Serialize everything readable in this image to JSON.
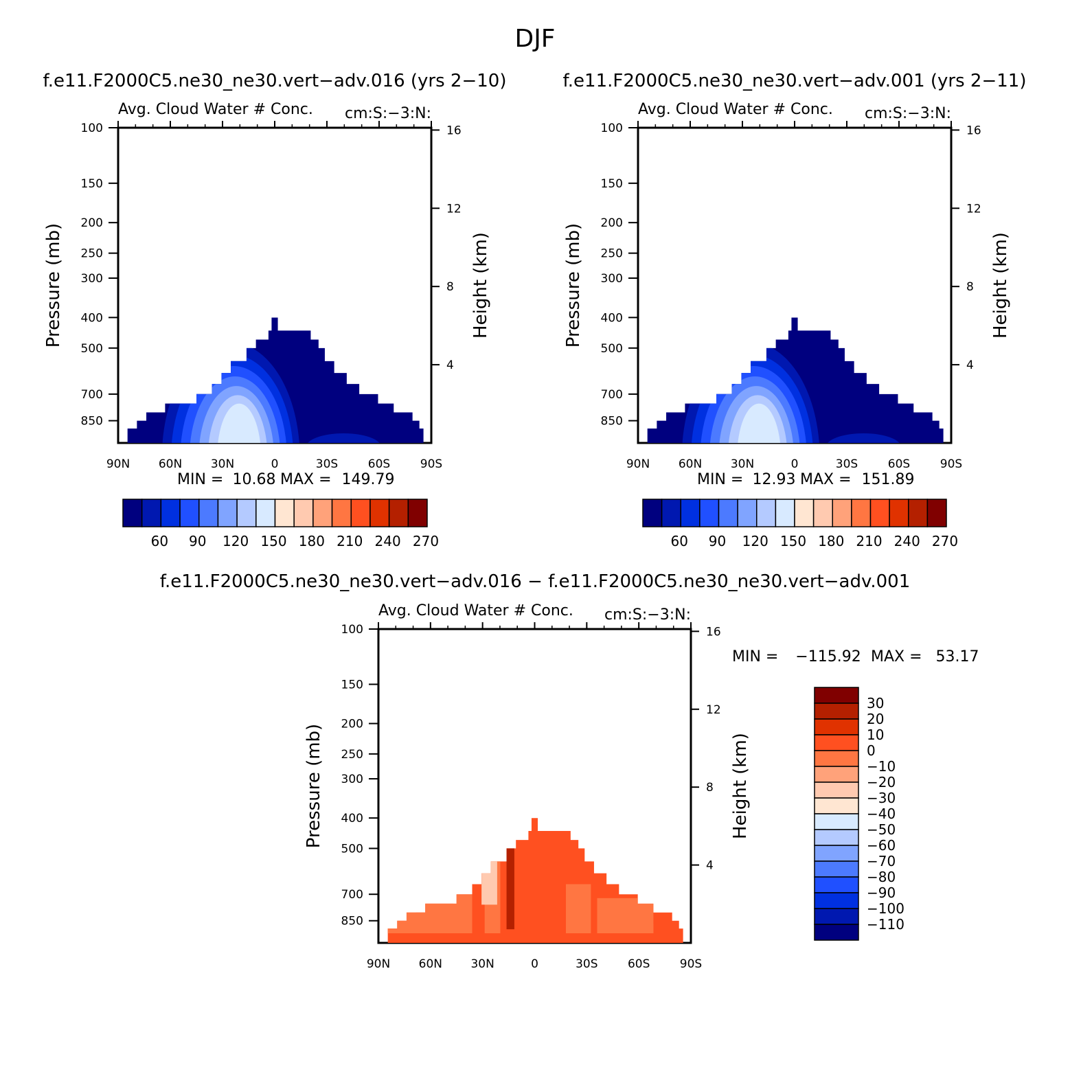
{
  "figure": {
    "season": "DJF",
    "panel_titles": [
      "f.e11.F2000C5.ne30_ne30.vert−adv.016 (yrs 2−10)",
      "f.e11.F2000C5.ne30_ne30.vert−adv.001 (yrs 2−11)",
      "f.e11.F2000C5.ne30_ne30.vert−adv.016 − f.e11.F2000C5.ne30_ne30.vert−adv.001"
    ]
  },
  "chart_data": [
    {
      "type": "heatmap",
      "title": "f.e11.F2000C5.ne30_ne30.vert−adv.016 (yrs 2−10)",
      "subtitle": "Avg. Cloud Water # Conc.",
      "units": "cm:S:−3:N:",
      "xlabel": "",
      "ylabel": "Pressure (mb)",
      "y2label": "Height (km)",
      "x_ticks": [
        "90N",
        "60N",
        "30N",
        "0",
        "30S",
        "60S",
        "90S"
      ],
      "y_ticks": [
        100,
        150,
        200,
        250,
        300,
        400,
        500,
        700,
        850
      ],
      "y2_ticks": [
        16,
        12,
        8,
        4
      ],
      "ylim": [
        100,
        1000
      ],
      "y_scale": "log",
      "stats": {
        "min_label": "MIN =",
        "min": "10.68",
        "max_label": "MAX =",
        "max": "149.79"
      },
      "colorbar": {
        "orientation": "horizontal",
        "labels": [
          "60",
          "90",
          "120",
          "150",
          "180",
          "210",
          "240",
          "270"
        ],
        "colors": [
          "#00007f",
          "#0018b0",
          "#0030e0",
          "#2050ff",
          "#4c7aff",
          "#80a4ff",
          "#b4caff",
          "#d8eaff",
          "#ffe6d2",
          "#ffcab0",
          "#ffa27a",
          "#ff7642",
          "#ff5020",
          "#e03200",
          "#b42000",
          "#800000"
        ]
      }
    },
    {
      "type": "heatmap",
      "title": "f.e11.F2000C5.ne30_ne30.vert−adv.001 (yrs 2−11)",
      "subtitle": "Avg. Cloud Water # Conc.",
      "units": "cm:S:−3:N:",
      "xlabel": "",
      "ylabel": "Pressure (mb)",
      "y2label": "Height (km)",
      "x_ticks": [
        "90N",
        "60N",
        "30N",
        "0",
        "30S",
        "60S",
        "90S"
      ],
      "y_ticks": [
        100,
        150,
        200,
        250,
        300,
        400,
        500,
        700,
        850
      ],
      "y2_ticks": [
        16,
        12,
        8,
        4
      ],
      "ylim": [
        100,
        1000
      ],
      "y_scale": "log",
      "stats": {
        "min_label": "MIN =",
        "min": "12.93",
        "max_label": "MAX =",
        "max": "151.89"
      },
      "colorbar": {
        "orientation": "horizontal",
        "labels": [
          "60",
          "90",
          "120",
          "150",
          "180",
          "210",
          "240",
          "270"
        ],
        "colors": [
          "#00007f",
          "#0018b0",
          "#0030e0",
          "#2050ff",
          "#4c7aff",
          "#80a4ff",
          "#b4caff",
          "#d8eaff",
          "#ffe6d2",
          "#ffcab0",
          "#ffa27a",
          "#ff7642",
          "#ff5020",
          "#e03200",
          "#b42000",
          "#800000"
        ]
      }
    },
    {
      "type": "heatmap",
      "title": "f.e11.F2000C5.ne30_ne30.vert−adv.016 − f.e11.F2000C5.ne30_ne30.vert−adv.001",
      "subtitle": "Avg. Cloud Water # Conc.",
      "units": "cm:S:−3:N:",
      "xlabel": "",
      "ylabel": "Pressure (mb)",
      "y2label": "Height (km)",
      "x_ticks": [
        "90N",
        "60N",
        "30N",
        "0",
        "30S",
        "60S",
        "90S"
      ],
      "y_ticks": [
        100,
        150,
        200,
        250,
        300,
        400,
        500,
        700,
        850
      ],
      "y2_ticks": [
        16,
        12,
        8,
        4
      ],
      "ylim": [
        100,
        1000
      ],
      "y_scale": "log",
      "stats": {
        "min_label": "MIN =",
        "min": "−115.92",
        "max_label": "MAX =",
        "max": "53.17"
      },
      "colorbar": {
        "orientation": "vertical",
        "labels": [
          "30",
          "20",
          "10",
          "0",
          "−10",
          "−20",
          "−30",
          "−40",
          "−50",
          "−60",
          "−70",
          "−80",
          "−90",
          "−100",
          "−110"
        ],
        "colors": [
          "#800000",
          "#b42000",
          "#e03200",
          "#ff5020",
          "#ff7642",
          "#ffa27a",
          "#ffcab0",
          "#ffe6d2",
          "#d8eaff",
          "#b4caff",
          "#80a4ff",
          "#4c7aff",
          "#2050ff",
          "#0030e0",
          "#0018b0",
          "#00007f"
        ]
      }
    }
  ]
}
